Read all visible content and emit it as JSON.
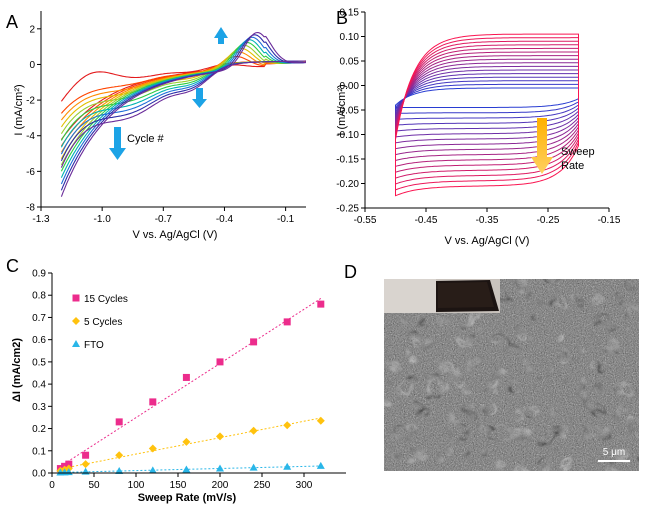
{
  "panels": {
    "A": {
      "letter": "A",
      "ylabel": "I (mA/cm²)",
      "xlabel": "V vs. Ag/AgCl (V)",
      "annotation": "Cycle #"
    },
    "B": {
      "letter": "B",
      "ylabel": "I (mA/cm²)",
      "xlabel": "V vs. Ag/AgCl (V)",
      "annotation_line1": "Sweep",
      "annotation_line2": "Rate"
    },
    "C": {
      "letter": "C",
      "ylabel": "ΔI (mA/cm2)",
      "xlabel": "Sweep Rate (mV/s)"
    },
    "D": {
      "letter": "D",
      "scalebar": "5 μm"
    }
  },
  "chart_data": [
    {
      "type": "line",
      "panel": "A",
      "xlabel": "V vs. Ag/AgCl (V)",
      "ylabel": "I (mA/cm²)",
      "xlim": [
        -1.3,
        0.0
      ],
      "ylim": [
        -8,
        3
      ],
      "xticks": [
        -1.3,
        -1.0,
        -0.7,
        -0.4,
        -0.1
      ],
      "yticks": [
        -8,
        -6,
        -4,
        -2,
        0,
        2
      ],
      "cycles": 10,
      "colors": [
        "#e31a1c",
        "#ff4500",
        "#ff8c00",
        "#e0c000",
        "#9acd32",
        "#2ecc40",
        "#00b3b3",
        "#1e6fd9",
        "#2c2ca8",
        "#6a2c9a"
      ],
      "annotation": "Cycle #"
    },
    {
      "type": "line",
      "panel": "B",
      "xlabel": "V vs. Ag/AgCl (V)",
      "ylabel": "I (mA/cm²)",
      "xlim": [
        -0.55,
        -0.15
      ],
      "ylim": [
        -0.25,
        0.15
      ],
      "xticks": [
        -0.55,
        -0.45,
        -0.35,
        -0.25,
        -0.15
      ],
      "yticks": [
        -0.25,
        -0.2,
        -0.15,
        -0.1,
        -0.05,
        0,
        0.05,
        0.1,
        0.15
      ],
      "potential_window": [
        -0.5,
        -0.2
      ],
      "series_count": 16,
      "annotation": "Sweep Rate"
    },
    {
      "type": "scatter",
      "panel": "C",
      "xlabel": "Sweep Rate (mV/s)",
      "ylabel": "ΔI (mA/cm2)",
      "xlim": [
        0,
        350
      ],
      "ylim": [
        0,
        0.9
      ],
      "xticks": [
        0,
        50,
        100,
        150,
        200,
        250,
        300
      ],
      "yticks": [
        0,
        0.1,
        0.2,
        0.3,
        0.4,
        0.5,
        0.6,
        0.7,
        0.8,
        0.9
      ],
      "legend": "top-left",
      "series": [
        {
          "name": "15 Cycles",
          "color": "#ec2c8c",
          "marker": "square",
          "x": [
            10,
            15,
            20,
            40,
            80,
            120,
            160,
            200,
            240,
            280,
            320
          ],
          "y": [
            0.02,
            0.03,
            0.04,
            0.08,
            0.23,
            0.32,
            0.43,
            0.5,
            0.59,
            0.68,
            0.76
          ]
        },
        {
          "name": "5 Cycles",
          "color": "#ffc20e",
          "marker": "diamond",
          "x": [
            10,
            15,
            20,
            40,
            80,
            120,
            160,
            200,
            240,
            280,
            320
          ],
          "y": [
            0.01,
            0.015,
            0.02,
            0.04,
            0.08,
            0.11,
            0.14,
            0.165,
            0.19,
            0.215,
            0.235
          ]
        },
        {
          "name": "FTO",
          "color": "#29b6e8",
          "marker": "triangle",
          "x": [
            10,
            15,
            20,
            40,
            80,
            120,
            160,
            200,
            240,
            280,
            320
          ],
          "y": [
            0.002,
            0.003,
            0.004,
            0.006,
            0.009,
            0.012,
            0.016,
            0.02,
            0.024,
            0.028,
            0.032
          ]
        }
      ]
    }
  ]
}
